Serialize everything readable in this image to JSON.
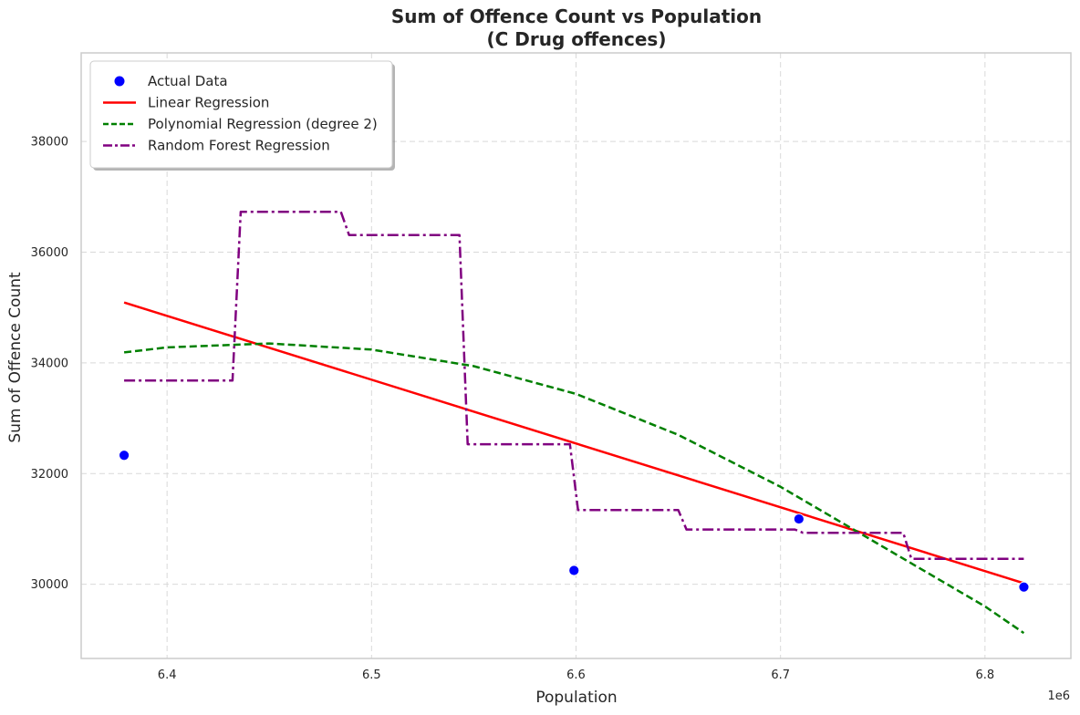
{
  "chart_data": {
    "type": "scatter",
    "title": "Sum of Offence Count vs Population",
    "subtitle": "(C Drug offences)",
    "xlabel": "Population",
    "ylabel": "Sum of Offence Count",
    "x_offset_label": "1e6",
    "xlim": [
      6.358,
      6.842
    ],
    "ylim": [
      28660,
      39600
    ],
    "x_ticks": [
      6.4,
      6.5,
      6.6,
      6.7,
      6.8
    ],
    "x_tick_labels": [
      "6.4",
      "6.5",
      "6.6",
      "6.7",
      "6.8"
    ],
    "y_ticks": [
      30000,
      32000,
      34000,
      36000,
      38000
    ],
    "y_tick_labels": [
      "30000",
      "32000",
      "34000",
      "36000",
      "38000"
    ],
    "grid": true,
    "legend_position": "top-left",
    "series": [
      {
        "name": "Actual Data",
        "kind": "scatter",
        "color": "#0000ff",
        "points": [
          [
            6.379,
            32330
          ],
          [
            6.599,
            30250
          ],
          [
            6.709,
            31180
          ],
          [
            6.819,
            29950
          ]
        ]
      },
      {
        "name": "Linear Regression",
        "kind": "line",
        "style": "solid",
        "color": "#ff0000",
        "points": [
          [
            6.379,
            35090
          ],
          [
            6.819,
            30020
          ]
        ]
      },
      {
        "name": "Polynomial Regression (degree 2)",
        "kind": "line",
        "style": "dashed",
        "color": "#008000",
        "points": [
          [
            6.379,
            34190
          ],
          [
            6.4,
            34280
          ],
          [
            6.45,
            34350
          ],
          [
            6.5,
            34240
          ],
          [
            6.55,
            33940
          ],
          [
            6.6,
            33440
          ],
          [
            6.65,
            32700
          ],
          [
            6.7,
            31760
          ],
          [
            6.75,
            30680
          ],
          [
            6.8,
            29600
          ],
          [
            6.819,
            29120
          ]
        ]
      },
      {
        "name": "Random Forest Regression",
        "kind": "line",
        "style": "dashdot",
        "color": "#800080",
        "points": [
          [
            6.379,
            33680
          ],
          [
            6.432,
            33680
          ],
          [
            6.436,
            36730
          ],
          [
            6.485,
            36730
          ],
          [
            6.489,
            36310
          ],
          [
            6.543,
            36310
          ],
          [
            6.547,
            32530
          ],
          [
            6.597,
            32530
          ],
          [
            6.601,
            31340
          ],
          [
            6.65,
            31340
          ],
          [
            6.654,
            30990
          ],
          [
            6.707,
            30990
          ],
          [
            6.711,
            30930
          ],
          [
            6.76,
            30930
          ],
          [
            6.764,
            30460
          ],
          [
            6.819,
            30460
          ]
        ]
      }
    ]
  }
}
